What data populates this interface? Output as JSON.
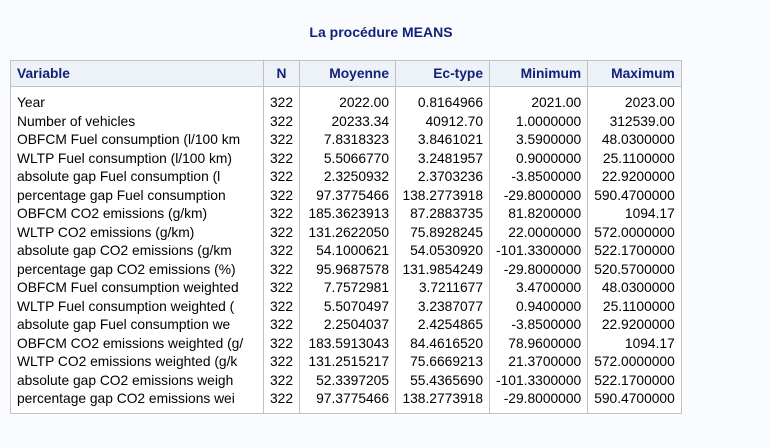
{
  "title": "La procédure MEANS",
  "headers": {
    "variable": "Variable",
    "n": "N",
    "mean": "Moyenne",
    "std": "Ec-type",
    "min": "Minimum",
    "max": "Maximum"
  },
  "rows": [
    {
      "variable": "Year",
      "n": "322",
      "mean": "2022.00",
      "std": "0.8164966",
      "min": "2021.00",
      "max": "2023.00"
    },
    {
      "variable": "Number of vehicles",
      "n": "322",
      "mean": "20233.34",
      "std": "40912.70",
      "min": "1.0000000",
      "max": "312539.00"
    },
    {
      "variable": "OBFCM Fuel consumption (l/100 km",
      "n": "322",
      "mean": "7.8318323",
      "std": "3.8461021",
      "min": "3.5900000",
      "max": "48.0300000"
    },
    {
      "variable": "WLTP Fuel consumption (l/100 km)",
      "n": "322",
      "mean": "5.5066770",
      "std": "3.2481957",
      "min": "0.9000000",
      "max": "25.1100000"
    },
    {
      "variable": "absolute gap Fuel consumption (l",
      "n": "322",
      "mean": "2.3250932",
      "std": "2.3703236",
      "min": "-3.8500000",
      "max": "22.9200000"
    },
    {
      "variable": "percentage gap Fuel consumption",
      "n": "322",
      "mean": "97.3775466",
      "std": "138.2773918",
      "min": "-29.8000000",
      "max": "590.4700000"
    },
    {
      "variable": "OBFCM CO2 emissions (g/km)",
      "n": "322",
      "mean": "185.3623913",
      "std": "87.2883735",
      "min": "81.8200000",
      "max": "1094.17"
    },
    {
      "variable": "WLTP CO2 emissions (g/km)",
      "n": "322",
      "mean": "131.2622050",
      "std": "75.8928245",
      "min": "22.0000000",
      "max": "572.0000000"
    },
    {
      "variable": "absolute gap CO2 emissions (g/km",
      "n": "322",
      "mean": "54.1000621",
      "std": "54.0530920",
      "min": "-101.3300000",
      "max": "522.1700000"
    },
    {
      "variable": "percentage gap CO2 emissions (%)",
      "n": "322",
      "mean": "95.9687578",
      "std": "131.9854249",
      "min": "-29.8000000",
      "max": "520.5700000"
    },
    {
      "variable": "OBFCM Fuel consumption weighted",
      "n": "322",
      "mean": "7.7572981",
      "std": "3.7211677",
      "min": "3.4700000",
      "max": "48.0300000"
    },
    {
      "variable": "WLTP Fuel consumption weighted (",
      "n": "322",
      "mean": "5.5070497",
      "std": "3.2387077",
      "min": "0.9400000",
      "max": "25.1100000"
    },
    {
      "variable": "absolute gap Fuel consumption we",
      "n": "322",
      "mean": "2.2504037",
      "std": "2.4254865",
      "min": "-3.8500000",
      "max": "22.9200000"
    },
    {
      "variable": "OBFCM CO2 emissions weighted (g/",
      "n": "322",
      "mean": "183.5913043",
      "std": "84.4616520",
      "min": "78.9600000",
      "max": "1094.17"
    },
    {
      "variable": "WLTP CO2 emissions weighted (g/k",
      "n": "322",
      "mean": "131.2515217",
      "std": "75.6669213",
      "min": "21.3700000",
      "max": "572.0000000"
    },
    {
      "variable": "absolute gap CO2 emissions weigh",
      "n": "322",
      "mean": "52.3397205",
      "std": "55.4365690",
      "min": "-101.3300000",
      "max": "522.1700000"
    },
    {
      "variable": "percentage gap CO2 emissions wei",
      "n": "322",
      "mean": "97.3775466",
      "std": "138.2773918",
      "min": "-29.8000000",
      "max": "590.4700000"
    }
  ]
}
